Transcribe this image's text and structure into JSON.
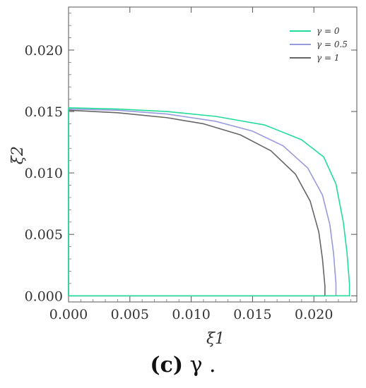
{
  "caption": {
    "letter": "(c)",
    "text": "γ ."
  },
  "chart_data": {
    "type": "line",
    "xlabel": "ξ1",
    "ylabel": "ξ2",
    "xlim": [
      0,
      0.0235
    ],
    "ylim": [
      -0.0005,
      0.0235
    ],
    "x_ticks": [
      "0.000",
      "0.005",
      "0.010",
      "0.015",
      "0.020"
    ],
    "y_ticks": [
      "0.000",
      "0.005",
      "0.010",
      "0.015",
      "0.020"
    ],
    "legend_position": "top-right",
    "series": [
      {
        "name": "γ = 0",
        "color": "#22dd99",
        "x": [
          0,
          0,
          0.004,
          0.008,
          0.012,
          0.016,
          0.019,
          0.0208,
          0.0218,
          0.0224,
          0.0227,
          0.0229,
          0.0229,
          0
        ],
        "y": [
          0,
          0.0153,
          0.0152,
          0.015,
          0.0146,
          0.0139,
          0.0127,
          0.0113,
          0.0091,
          0.006,
          0.0035,
          0.001,
          0,
          0
        ]
      },
      {
        "name": "γ = 0.5",
        "color": "#9999dd",
        "x": [
          0,
          0,
          0.004,
          0.008,
          0.012,
          0.015,
          0.0175,
          0.0195,
          0.0207,
          0.0213,
          0.0216,
          0.0218,
          0.0218,
          0
        ],
        "y": [
          0,
          0.0152,
          0.0151,
          0.0148,
          0.0142,
          0.0134,
          0.0122,
          0.0104,
          0.0082,
          0.0058,
          0.0035,
          0.001,
          0,
          0
        ]
      },
      {
        "name": "γ = 1",
        "color": "#666666",
        "x": [
          0,
          0,
          0.004,
          0.008,
          0.011,
          0.014,
          0.0165,
          0.0185,
          0.0197,
          0.0204,
          0.0207,
          0.0209,
          0.0209,
          0
        ],
        "y": [
          0,
          0.0151,
          0.0149,
          0.0145,
          0.014,
          0.0131,
          0.0118,
          0.0099,
          0.0077,
          0.0052,
          0.003,
          0.0008,
          0,
          0
        ]
      }
    ]
  }
}
